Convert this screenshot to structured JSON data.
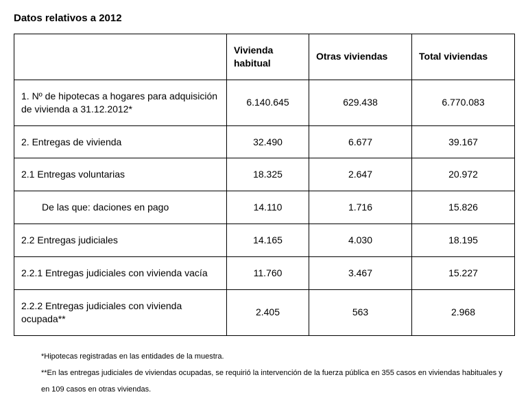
{
  "title": "Datos relativos a 2012",
  "columns": {
    "blank": "",
    "habitual": "Vivienda habitual",
    "otras": "Otras viviendas",
    "total": "Total viviendas"
  },
  "rows": [
    {
      "label": "1. Nº de hipotecas a hogares para adquisición de vivienda a 31.12.2012*",
      "habitual": "6.140.645",
      "otras": "629.438",
      "total": "6.770.083",
      "indent": false
    },
    {
      "label": "2. Entregas de vivienda",
      "habitual": "32.490",
      "otras": "6.677",
      "total": "39.167",
      "indent": false
    },
    {
      "label": "2.1 Entregas voluntarias",
      "habitual": "18.325",
      "otras": "2.647",
      "total": "20.972",
      "indent": false
    },
    {
      "label": "De las que: daciones en pago",
      "habitual": "14.110",
      "otras": "1.716",
      "total": "15.826",
      "indent": true
    },
    {
      "label": "2.2 Entregas judiciales",
      "habitual": "14.165",
      "otras": "4.030",
      "total": "18.195",
      "indent": false
    },
    {
      "label": "2.2.1 Entregas judiciales con vivienda vacía",
      "habitual": "11.760",
      "otras": "3.467",
      "total": "15.227",
      "indent": false
    },
    {
      "label": "2.2.2 Entregas judiciales con vivienda ocupada**",
      "habitual": "2.405",
      "otras": "563",
      "total": "2.968",
      "indent": false
    }
  ],
  "footnotes": {
    "f1": "*Hipotecas registradas en las entidades de la muestra.",
    "f2": "**En las entregas judiciales de viviendas ocupadas, se requirió la intervención de la fuerza pública en 355 casos en viviendas habituales y en 109 casos en otras viviendas."
  }
}
